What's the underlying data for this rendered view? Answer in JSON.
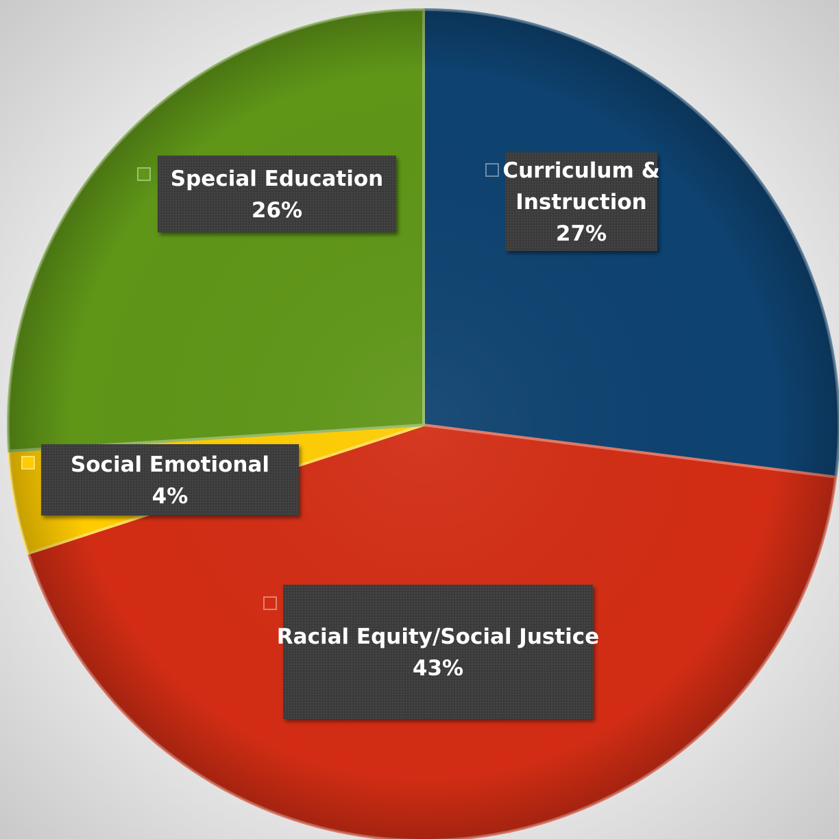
{
  "chart_data": {
    "type": "pie",
    "title": "",
    "start_angle_deg": 0,
    "direction": "clockwise",
    "slices": [
      {
        "label_lines": [
          "Curriculum &",
          "Instruction"
        ],
        "value": 27,
        "value_label": "27%",
        "color": "#0E4270"
      },
      {
        "label_lines": [
          "Racial Equity/Social Justice"
        ],
        "value": 43,
        "value_label": "43%",
        "color": "#D22D14"
      },
      {
        "label_lines": [
          "Social Emotional"
        ],
        "value": 4,
        "value_label": "4%",
        "color": "#FFCC00"
      },
      {
        "label_lines": [
          "Special Education"
        ],
        "value": 26,
        "value_label": "26%",
        "color": "#5F9618"
      }
    ],
    "data_label_style": {
      "box_color": "#3c3c3c",
      "text_color": "#ffffff"
    }
  }
}
